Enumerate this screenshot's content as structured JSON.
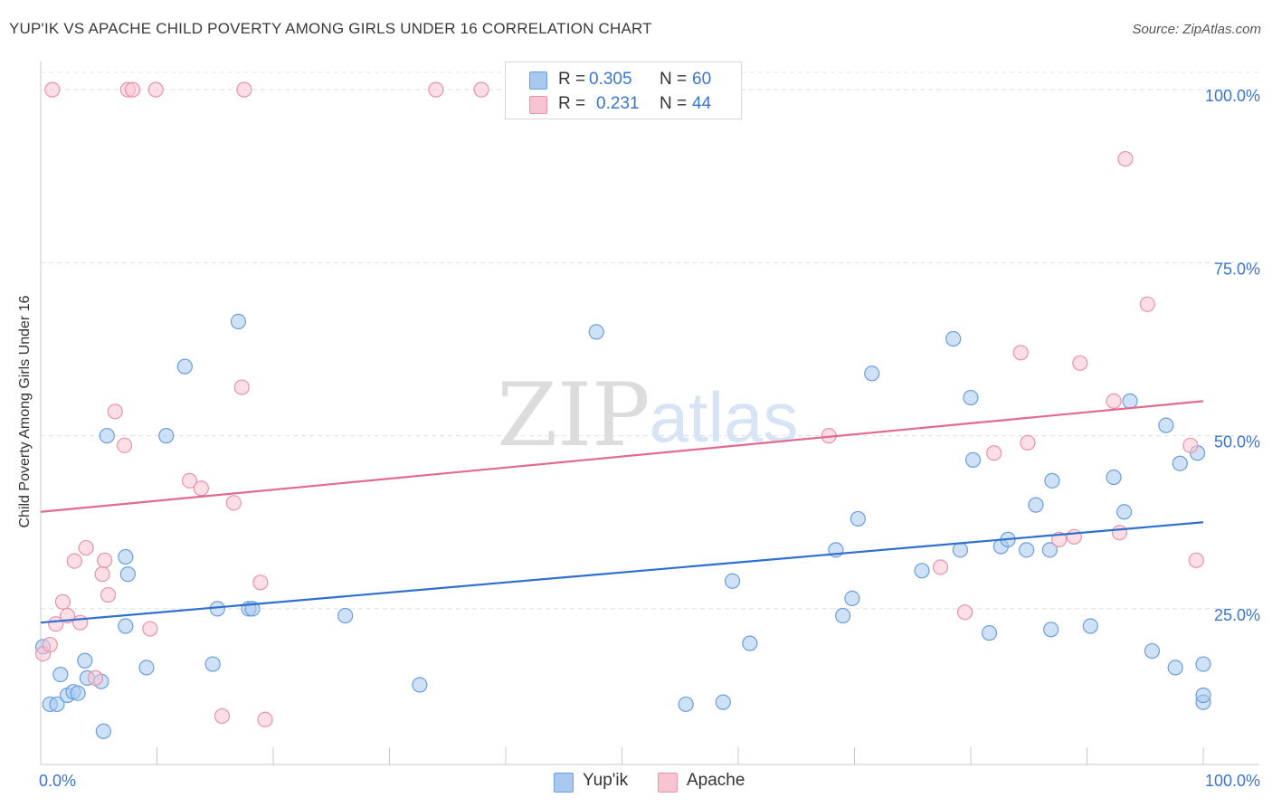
{
  "title": "YUP'IK VS APACHE CHILD POVERTY AMONG GIRLS UNDER 16 CORRELATION CHART",
  "source": "Source: ZipAtlas.com",
  "watermark": {
    "zip": "ZIP",
    "atlas": "atlas"
  },
  "stats": [
    {
      "r_label": "R =",
      "r_value": "0.305",
      "n_label": "N =",
      "n_value": "60",
      "color": "#a8c8f0",
      "border": "#6a9edc"
    },
    {
      "r_label": "R =",
      "r_value": "0.231",
      "n_label": "N =",
      "n_value": "44",
      "color": "#f9c4d2",
      "border": "#e892ac"
    }
  ],
  "legend": [
    {
      "label": "Yup'ik",
      "color": "#a8c8f0",
      "border": "#6a9edc"
    },
    {
      "label": "Apache",
      "color": "#f9c4d2",
      "border": "#e892ac"
    }
  ],
  "chart_data": {
    "type": "scatter",
    "title": "YUP'IK VS APACHE CHILD POVERTY AMONG GIRLS UNDER 16 CORRELATION CHART",
    "xlabel": "",
    "ylabel": "Child Poverty Among Girls Under 16",
    "xlim": [
      0,
      100
    ],
    "ylim": [
      2.5,
      102.5
    ],
    "x_tick_labels": [
      "0.0%",
      "100.0%"
    ],
    "y_tick_labels": [
      "25.0%",
      "50.0%",
      "75.0%",
      "100.0%"
    ],
    "y_ticks": [
      25,
      50,
      75,
      100
    ],
    "grid": true,
    "legend_position": "bottom-center",
    "series": [
      {
        "name": "Yup'ik",
        "color": "#6a9edc",
        "fill": "#a8c8f0",
        "line_color": "#2f6fcf",
        "trend": {
          "x": [
            0,
            100
          ],
          "y": [
            23.0,
            37.5
          ]
        },
        "x": [
          0.2,
          0.8,
          1.4,
          1.7,
          2.3,
          2.8,
          3.2,
          3.8,
          4.0,
          5.2,
          5.4,
          5.7,
          7.3,
          7.3,
          7.5,
          9.1,
          10.8,
          12.4,
          14.8,
          15.2,
          17.0,
          17.9,
          18.2,
          26.2,
          32.6,
          47.8,
          70.3,
          80.0,
          80.2,
          82.6,
          83.2,
          84.8,
          86.9,
          87.0,
          93.2,
          95.6,
          97.6,
          100.0,
          100.0,
          100.0,
          99.5,
          98.0,
          96.8,
          93.7,
          92.3,
          90.3,
          86.8,
          85.6,
          81.6,
          79.1,
          78.5,
          75.8,
          71.5,
          69.8,
          69.0,
          68.4,
          61.0,
          59.5,
          58.7,
          55.5
        ],
        "y": [
          19.5,
          11.2,
          11.2,
          15.5,
          12.5,
          13.0,
          12.8,
          17.5,
          15.0,
          14.5,
          7.3,
          50.0,
          32.5,
          22.5,
          30.0,
          16.5,
          50.0,
          60.0,
          17.0,
          25.0,
          66.5,
          25.0,
          25.0,
          24.0,
          14.0,
          65.0,
          38.0,
          55.5,
          46.5,
          34.0,
          35.0,
          33.5,
          22.0,
          43.5,
          39.0,
          18.9,
          16.5,
          17.0,
          11.5,
          12.5,
          47.5,
          46.0,
          51.5,
          55.0,
          44.0,
          22.5,
          33.5,
          40.0,
          21.5,
          33.5,
          64.0,
          30.5,
          59.0,
          26.5,
          24.0,
          33.5,
          20.0,
          29.0,
          11.5,
          11.2
        ]
      },
      {
        "name": "Apache",
        "color": "#e892ac",
        "fill": "#f9c4d2",
        "line_color": "#e06a90",
        "trend": {
          "x": [
            0,
            100
          ],
          "y": [
            39.0,
            55.0
          ]
        },
        "x": [
          0.2,
          0.8,
          1.3,
          1.9,
          2.3,
          2.9,
          3.4,
          3.9,
          4.7,
          5.3,
          5.5,
          5.8,
          6.4,
          7.2,
          7.5,
          7.9,
          9.4,
          9.9,
          12.8,
          13.8,
          16.6,
          17.3,
          17.5,
          18.9,
          34.0,
          37.9,
          67.8,
          77.4,
          79.5,
          82.0,
          84.3,
          84.9,
          87.6,
          88.9,
          89.4,
          92.3,
          92.8,
          93.3,
          95.2,
          98.9,
          99.4,
          15.6,
          19.3,
          1.0
        ],
        "y": [
          18.5,
          19.8,
          22.8,
          26.0,
          24.0,
          31.9,
          23.0,
          33.8,
          15.0,
          30.0,
          32.0,
          27.0,
          53.5,
          48.6,
          100.0,
          100.0,
          22.1,
          100.0,
          43.5,
          42.4,
          40.3,
          57.0,
          100.0,
          28.8,
          100.0,
          100.0,
          50.0,
          31.0,
          24.5,
          47.5,
          62.0,
          49.0,
          35.0,
          35.4,
          60.5,
          55.0,
          36.0,
          90.0,
          69.0,
          48.6,
          32.0,
          9.5,
          9.0,
          100.0
        ]
      }
    ]
  }
}
